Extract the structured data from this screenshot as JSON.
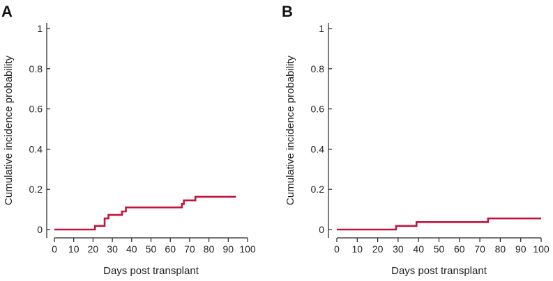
{
  "colors": {
    "curve": "#c0143c",
    "axis": "#222222",
    "text": "#222222"
  },
  "chart_data": [
    {
      "type": "line",
      "panel": "A",
      "title": "",
      "xlabel": "Days post transplant",
      "ylabel": "Cumulative incidence probability",
      "xlim": [
        0,
        100
      ],
      "ylim": [
        0,
        1
      ],
      "xticks": [
        0,
        10,
        20,
        30,
        40,
        50,
        60,
        70,
        80,
        90,
        100
      ],
      "xtick_labels": [
        "0",
        "10",
        "20",
        "30",
        "40",
        "50",
        "60",
        "70",
        "80",
        "90",
        "100"
      ],
      "yticks": [
        0,
        0.2,
        0.4,
        0.6,
        0.8,
        1
      ],
      "ytick_labels": [
        "0",
        "0.2",
        "0.4",
        "0.6",
        "0.8",
        "1"
      ],
      "grid": false,
      "step": true,
      "series": [
        {
          "name": "Cumulative incidence",
          "x": [
            0,
            21,
            26,
            28,
            35,
            37,
            66,
            67,
            73,
            94
          ],
          "y": [
            0,
            0.018,
            0.055,
            0.073,
            0.09,
            0.11,
            0.127,
            0.145,
            0.163,
            0.163
          ]
        }
      ]
    },
    {
      "type": "line",
      "panel": "B",
      "title": "",
      "xlabel": "Days post transplant",
      "ylabel": "Cumulative incidence probability",
      "xlim": [
        0,
        100
      ],
      "ylim": [
        0,
        1
      ],
      "xticks": [
        0,
        10,
        20,
        30,
        40,
        50,
        60,
        70,
        80,
        90,
        100
      ],
      "xtick_labels": [
        "0",
        "10",
        "20",
        "30",
        "40",
        "50",
        "60",
        "70",
        "80",
        "90",
        "100"
      ],
      "yticks": [
        0,
        0.2,
        0.4,
        0.6,
        0.8,
        1
      ],
      "ytick_labels": [
        "0",
        "0.2",
        "0.4",
        "0.6",
        "0.8",
        "1"
      ],
      "grid": false,
      "step": true,
      "series": [
        {
          "name": "Cumulative incidence",
          "x": [
            0,
            29,
            39,
            74,
            100
          ],
          "y": [
            0,
            0.018,
            0.037,
            0.055,
            0.055
          ]
        }
      ]
    }
  ]
}
